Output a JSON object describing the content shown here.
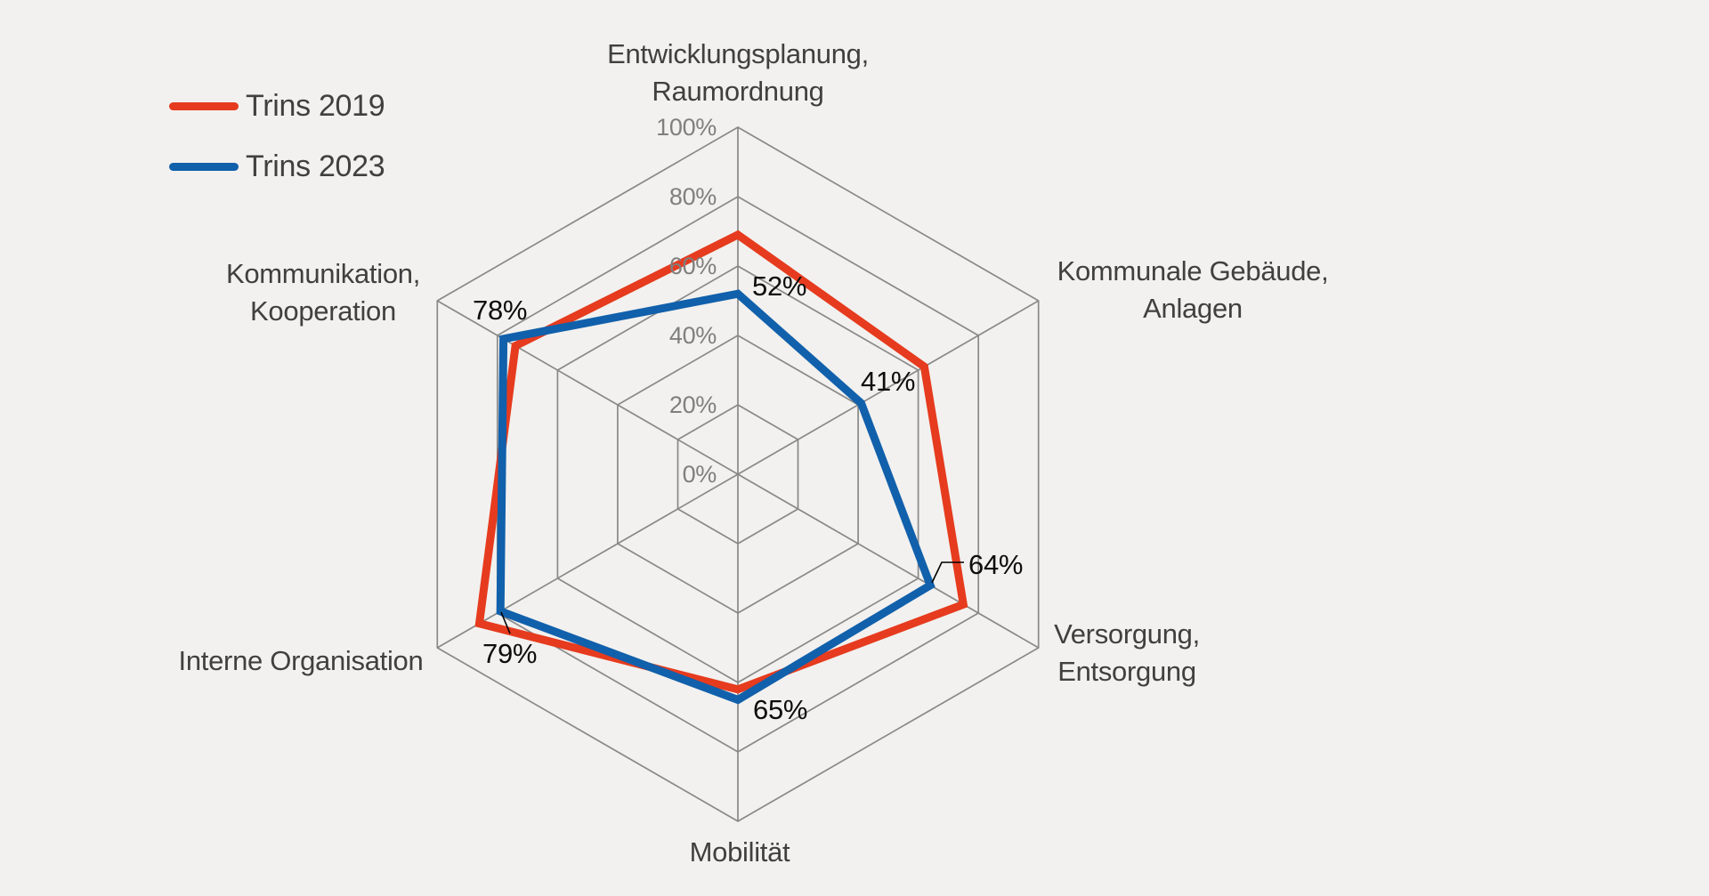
{
  "colors": {
    "background": "#f2f1ef",
    "grid": "#898989",
    "tick_text": "#7f7f7f",
    "category_text": "#404040",
    "data_label_text": "#0d0d0d"
  },
  "legend": {
    "items": [
      {
        "label": "Trins 2019",
        "color": "#e63b1e"
      },
      {
        "label": "Trins 2023",
        "color": "#1160ab"
      }
    ]
  },
  "chart_data": {
    "type": "radar",
    "categories": [
      "Entwicklungsplanung,\nRaumordnung",
      "Kommunale Gebäude,\nAnlagen",
      "Versorgung,\nEntsorgung",
      "Mobilität",
      "Interne Organisation",
      "Kommunikation,\nKooperation"
    ],
    "rmax": 100,
    "grid_levels": [
      20,
      40,
      60,
      80,
      100
    ],
    "tick_labels": [
      "0%",
      "20%",
      "40%",
      "60%",
      "80%",
      "100%"
    ],
    "grid": true,
    "legend_position": "top-left",
    "series": [
      {
        "name": "Trins 2019",
        "color": "#e63b1e",
        "values": [
          69,
          62,
          75,
          62,
          86,
          74
        ]
      },
      {
        "name": "Trins 2023",
        "color": "#1160ab",
        "values": [
          52,
          41,
          64,
          65,
          79,
          78
        ],
        "data_labels": [
          "52%",
          "41%",
          "64%",
          "65%",
          "79%",
          "78%"
        ]
      }
    ]
  }
}
